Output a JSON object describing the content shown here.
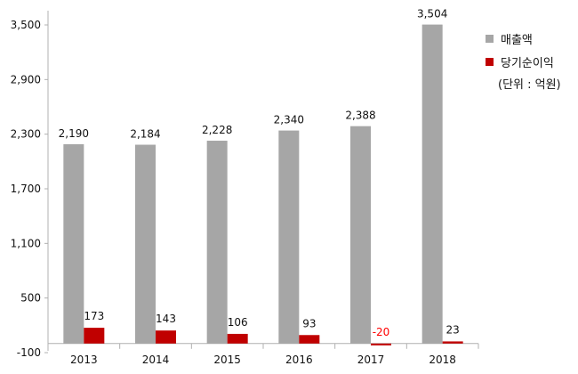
{
  "chart_data": {
    "type": "bar",
    "categories": [
      "2013",
      "2014",
      "2015",
      "2016",
      "2017",
      "2018"
    ],
    "series": [
      {
        "name": "매출액",
        "values": [
          2190,
          2184,
          2228,
          2340,
          2388,
          3504
        ],
        "labels": [
          "2,190",
          "2,184",
          "2,228",
          "2,340",
          "2,388",
          "3,504"
        ],
        "color": "#a6a6a6"
      },
      {
        "name": "당기순이익",
        "values": [
          173,
          143,
          106,
          93,
          -20,
          23
        ],
        "labels": [
          "173",
          "143",
          "106",
          "93",
          "-20",
          "23"
        ],
        "color": "#c00000"
      }
    ],
    "negative_label_color": "#ff0000",
    "yticks": [
      -100,
      500,
      1100,
      1700,
      2300,
      2900,
      3500
    ],
    "ytick_labels": [
      "-100",
      "500",
      "1,100",
      "1,700",
      "2,300",
      "2,900",
      "3,500"
    ],
    "ylim": [
      -100,
      3600
    ],
    "grid": false,
    "legend_position": "right",
    "unit_note": "(단위 : 억원)"
  }
}
